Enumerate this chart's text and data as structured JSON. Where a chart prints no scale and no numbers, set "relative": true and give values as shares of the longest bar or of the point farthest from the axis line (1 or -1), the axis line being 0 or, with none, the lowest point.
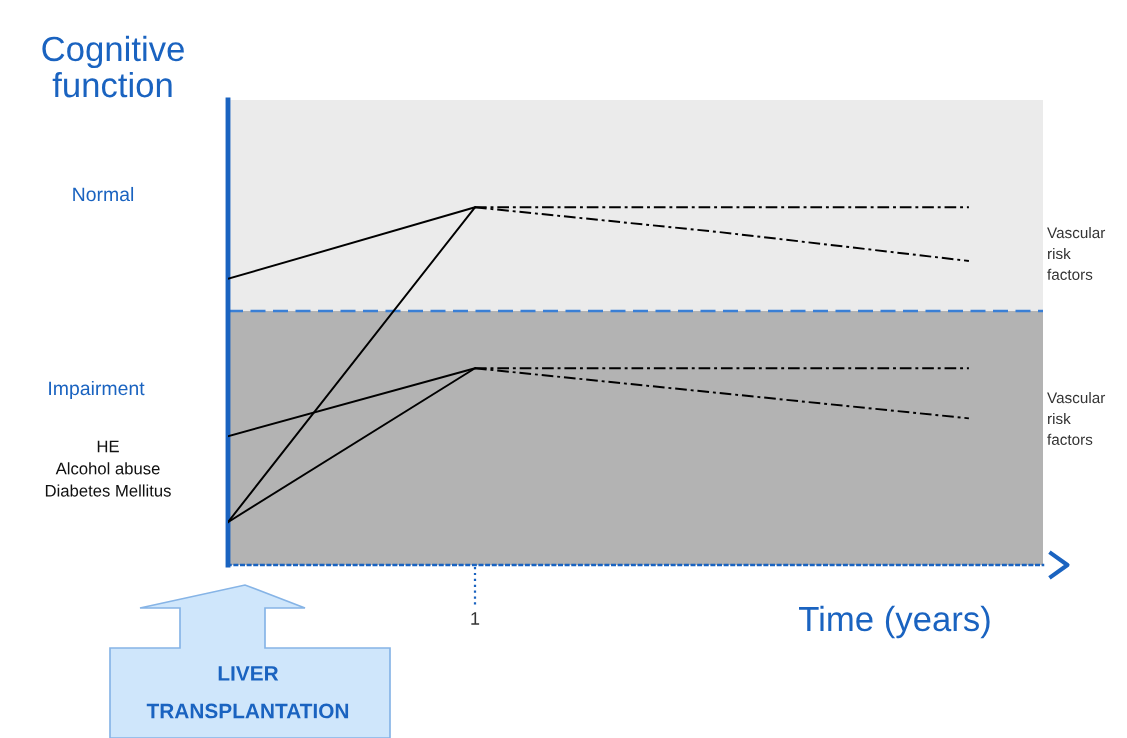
{
  "chart_data": {
    "type": "line",
    "relative": true,
    "ylabel": "Cognitive\nfunction",
    "xlabel": "Time (years)",
    "categories": [
      null,
      null,
      null,
      null
    ],
    "marker": "none",
    "series": [
      {
        "color": "#000000",
        "values": [
          0.8,
          1.0,
          null,
          null
        ],
        "line_style": "solid"
      },
      {
        "color": "#000000",
        "values": [
          0.12,
          1.0,
          null,
          null
        ],
        "line_style": "solid"
      },
      {
        "color": "#000000",
        "values": [
          0.36,
          0.55,
          null,
          null
        ],
        "line_style": "solid"
      },
      {
        "color": "#000000",
        "values": [
          0.12,
          0.55,
          null,
          null
        ],
        "line_style": "solid"
      },
      {
        "color": "#000000",
        "values": [
          null,
          1.0,
          1.0,
          1.0
        ],
        "line_style": "dashdot"
      },
      {
        "color": "#000000",
        "values": [
          null,
          1.0,
          0.93,
          0.85
        ],
        "line_style": "dashdot"
      },
      {
        "color": "#000000",
        "values": [
          null,
          0.55,
          0.55,
          0.55
        ],
        "line_style": "dashdot"
      },
      {
        "color": "#000000",
        "values": [
          null,
          0.55,
          0.48,
          0.41
        ],
        "line_style": "dashdot"
      }
    ],
    "bands": [
      {
        "axis": "y",
        "from": 0,
        "to": 0.71,
        "color": "#b3b3b3"
      },
      {
        "axis": "y",
        "from": 0.71,
        "to": 1.3,
        "color": "#ebebeb"
      }
    ],
    "ref_lines": [
      {
        "axis": "y",
        "value": 0.71,
        "color": "#3a7fd5",
        "line_style": "dashed"
      }
    ],
    "annotations": [
      "1",
      "Normal",
      "Impairment",
      "HE\nAlcohol abuse\nDiabetes Mellitus",
      "LIVER\nTRANSPLANTATION",
      "Vascular\nrisk\nfactors",
      "Vascular\nrisk\nfactors"
    ]
  }
}
